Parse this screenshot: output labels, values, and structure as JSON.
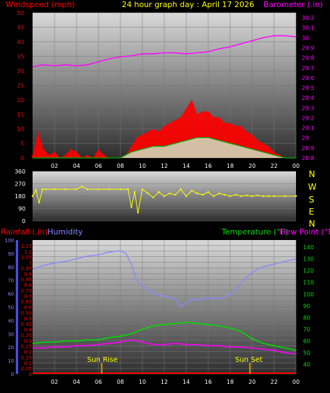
{
  "header": {
    "left_label": "Windspeed (mph)",
    "center_label": "24 hour graph day : April 17 2026",
    "right_label": "Barometer (.in)"
  },
  "labels_mid": {
    "compass": [
      "N",
      "W",
      "S",
      "E",
      "N"
    ]
  },
  "labels_bottom": {
    "rainfall": "Rainfall (.in)",
    "humidity": "Humidity",
    "temperature": "Temperature (°F)",
    "dewpoint": "Dew Point (°F)",
    "sunrise": "Sun Rise",
    "sunset": "Sun Set"
  },
  "colors": {
    "wind": "#ff0000",
    "gust_low": "#00b000",
    "wind_light": "#cceecc",
    "barometer": "#ff00ff",
    "direction": "#ffff00",
    "humidity": "#8888ff",
    "temperature": "#00dd00",
    "dewpoint": "#ff00ff",
    "rain": "#ff0000",
    "sun": "#cc9900"
  },
  "chart_data": [
    {
      "type": "area",
      "id": "wind_baro",
      "x_ticks": [
        "02",
        "04",
        "06",
        "08",
        "10",
        "12",
        "14",
        "16",
        "18",
        "20",
        "22",
        "00"
      ],
      "x_range": [
        0,
        24
      ],
      "y_left": {
        "ticks": [
          0,
          5,
          10,
          15,
          20,
          25,
          30,
          35,
          40,
          45,
          50
        ],
        "range": [
          0,
          50
        ]
      },
      "y_right": {
        "ticks": [
          "28.8",
          "28.9",
          "29",
          "29.1",
          "29.2",
          "29.3",
          "29.4",
          "29.5",
          "29.6",
          "29.7",
          "29.8",
          "29.9",
          "30",
          "30.1",
          "30.2"
        ],
        "range": [
          28.8,
          30.25
        ]
      },
      "series": [
        {
          "name": "Barometer (.in)",
          "x": [
            0,
            1,
            2,
            3,
            4,
            5,
            6,
            7,
            8,
            9,
            10,
            11,
            12,
            13,
            14,
            15,
            16,
            17,
            18,
            19,
            20,
            21,
            22,
            23,
            24
          ],
          "values": [
            29.71,
            29.73,
            29.72,
            29.73,
            29.72,
            29.73,
            29.76,
            29.79,
            29.81,
            29.82,
            29.84,
            29.84,
            29.85,
            29.85,
            29.84,
            29.85,
            29.86,
            29.89,
            29.91,
            29.94,
            29.97,
            30.0,
            30.02,
            30.02,
            30.01
          ]
        },
        {
          "name": "Windspeed (mph)",
          "x": [
            0,
            0.5,
            1,
            1.5,
            2,
            2.5,
            3,
            3.5,
            4,
            4.5,
            5,
            5.5,
            6,
            6.5,
            7,
            7.5,
            8,
            8.5,
            9,
            9.5,
            10,
            10.5,
            11,
            11.5,
            12,
            12.5,
            13,
            13.5,
            14,
            14.5,
            15,
            15.5,
            16,
            16.5,
            17,
            17.5,
            18,
            18.5,
            19,
            19.5,
            20,
            20.5,
            21,
            21.5,
            22,
            22.5,
            23,
            23.5,
            24
          ],
          "values": [
            1,
            9,
            3,
            1,
            2,
            0,
            1,
            3,
            2,
            0,
            1,
            0,
            3,
            1,
            0,
            0,
            0,
            1,
            4,
            7,
            8,
            9,
            10,
            9,
            11,
            12,
            13,
            14,
            17,
            20,
            15,
            16,
            16,
            14,
            14,
            12,
            12,
            11,
            11,
            9,
            8,
            6,
            5,
            4,
            2,
            1,
            0,
            0,
            0
          ]
        },
        {
          "name": "Gust low",
          "x": [
            0,
            2,
            4,
            6,
            8,
            9,
            10,
            11,
            12,
            13,
            14,
            15,
            16,
            17,
            18,
            19,
            20,
            21,
            22,
            23,
            24
          ],
          "values": [
            0,
            0,
            0,
            0,
            0,
            2,
            3,
            4,
            4,
            5,
            6,
            7,
            7,
            6,
            5,
            4,
            3,
            2,
            1,
            0,
            0
          ]
        }
      ]
    },
    {
      "type": "scatter",
      "id": "wind_direction",
      "y_ticks": [
        0,
        90,
        180,
        270,
        360
      ],
      "y_range": [
        0,
        360
      ],
      "x_range": [
        0,
        24
      ],
      "series": [
        {
          "name": "Direction",
          "x": [
            0,
            0.3,
            0.6,
            0.9,
            1.2,
            2,
            3,
            4,
            4.5,
            5,
            6,
            7,
            8,
            8.7,
            9,
            9.3,
            9.6,
            10,
            10.5,
            11,
            11.5,
            12,
            12.5,
            13,
            13.5,
            14,
            14.5,
            15,
            15.5,
            16,
            16.5,
            17,
            17.5,
            18,
            18.5,
            19,
            19.5,
            20,
            20.5,
            21,
            21.5,
            22,
            23,
            24
          ],
          "values": [
            180,
            225,
            135,
            230,
            230,
            230,
            230,
            230,
            250,
            230,
            230,
            230,
            230,
            230,
            100,
            210,
            60,
            230,
            200,
            170,
            210,
            180,
            200,
            190,
            230,
            180,
            220,
            200,
            190,
            210,
            180,
            200,
            190,
            180,
            190,
            180,
            185,
            180,
            185,
            180,
            180,
            180,
            180,
            180
          ]
        }
      ]
    },
    {
      "type": "line",
      "id": "temp_hum",
      "x_range": [
        0,
        24
      ],
      "y_left_rain": {
        "ticks": [
          "0",
          "0.05",
          "0.1",
          "0.15",
          "0.2",
          "0.25",
          "0.3",
          "0.35",
          "0.4",
          "0.45",
          "0.5",
          "0.55",
          "0.6",
          "0.65",
          "0.7",
          "0.75",
          "0.8",
          "0.85",
          "0.9",
          "0.95",
          "1",
          "1.05",
          "1.1",
          "1.15"
        ],
        "range": [
          0,
          1.2
        ]
      },
      "y_left_hum": {
        "ticks": [
          0,
          10,
          20,
          30,
          40,
          50,
          60,
          70,
          80,
          90,
          100
        ],
        "range": [
          0,
          100
        ]
      },
      "y_right": {
        "ticks": [
          40,
          50,
          60,
          70,
          80,
          90,
          100,
          110,
          120,
          130,
          140
        ],
        "range": [
          32,
          146
        ]
      },
      "series": [
        {
          "name": "Humidity",
          "x": [
            0,
            1,
            2,
            3,
            4,
            5,
            6,
            7,
            8,
            8.5,
            9,
            9.5,
            10,
            11,
            12,
            13,
            13.5,
            14,
            14.5,
            15,
            16,
            17,
            18,
            19,
            20,
            21,
            22,
            23,
            24
          ],
          "values": [
            78,
            81,
            83,
            84,
            86,
            88,
            89,
            91,
            92,
            90,
            82,
            70,
            66,
            60,
            58,
            56,
            50,
            53,
            56,
            55,
            57,
            56,
            59,
            68,
            76,
            80,
            82,
            84,
            86
          ]
        },
        {
          "name": "Temperature (°F)",
          "x": [
            0,
            1,
            2,
            3,
            4,
            5,
            6,
            7,
            8,
            9,
            10,
            11,
            12,
            13,
            14,
            15,
            16,
            17,
            18,
            19,
            20,
            21,
            22,
            23,
            24
          ],
          "values": [
            58,
            59,
            59,
            60,
            60,
            61,
            61,
            63,
            64,
            66,
            70,
            73,
            74,
            75,
            76,
            75,
            74,
            73,
            71,
            68,
            62,
            58,
            56,
            54,
            52
          ]
        },
        {
          "name": "Dew Point (°F)",
          "x": [
            0,
            1,
            2,
            3,
            4,
            5,
            6,
            7,
            8,
            9,
            10,
            11,
            12,
            13,
            14,
            15,
            16,
            17,
            18,
            19,
            20,
            21,
            22,
            23,
            24
          ],
          "values": [
            54,
            54,
            55,
            55,
            56,
            56,
            57,
            58,
            59,
            61,
            59,
            57,
            57,
            58,
            57,
            57,
            56,
            56,
            55,
            55,
            54,
            53,
            52,
            50,
            49
          ]
        },
        {
          "name": "Rainfall (.in)",
          "x": [
            0,
            24
          ],
          "values": [
            0,
            0
          ]
        }
      ],
      "sunrise_hour": 6.3,
      "sunset_hour": 19.8
    }
  ]
}
